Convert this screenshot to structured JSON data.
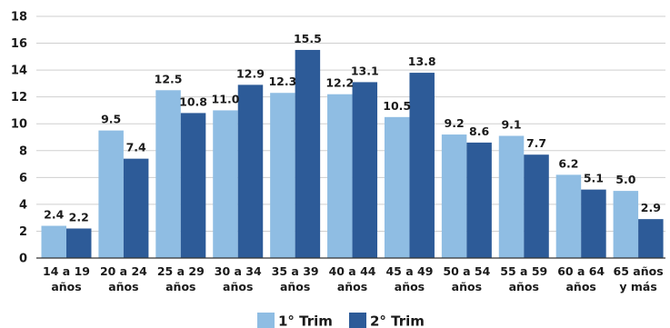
{
  "chart_data": {
    "type": "bar",
    "categories": [
      [
        "14 a 19",
        "años"
      ],
      [
        "20 a 24",
        "años"
      ],
      [
        "25 a 29",
        "años"
      ],
      [
        "30 a 34",
        "años"
      ],
      [
        "35 a 39",
        "años"
      ],
      [
        "40 a 44",
        "años"
      ],
      [
        "45 a 49",
        "años"
      ],
      [
        "50 a 54",
        "años"
      ],
      [
        "55 a 59",
        "años"
      ],
      [
        "60 a 64",
        "años"
      ],
      [
        "65 años",
        "y más"
      ]
    ],
    "series": [
      {
        "name": "1° Trim",
        "color": "#8fbde3",
        "values": [
          2.4,
          9.5,
          12.5,
          11.0,
          12.3,
          12.2,
          10.5,
          9.2,
          9.1,
          6.2,
          5.0
        ],
        "labels": [
          "2.4",
          "9.5",
          "12.5",
          "11.0",
          "12.3",
          "12.2",
          "10.5",
          "9.2",
          "9.1",
          "6.2",
          "5.0"
        ]
      },
      {
        "name": "2° Trim",
        "color": "#2d5b98",
        "values": [
          2.2,
          7.4,
          10.8,
          12.9,
          15.5,
          13.1,
          13.8,
          8.6,
          7.7,
          5.1,
          2.9
        ],
        "labels": [
          "2.2",
          "7.4",
          "10.8",
          "12.9",
          "15.5",
          "13.1",
          "13.8",
          "8.6",
          "7.7",
          "5.1",
          "2.9"
        ]
      }
    ],
    "ylim": [
      0,
      18
    ],
    "yticks": [
      0,
      2,
      4,
      6,
      8,
      10,
      12,
      14,
      16,
      18
    ],
    "grid": true,
    "legend": "bottom-center"
  }
}
